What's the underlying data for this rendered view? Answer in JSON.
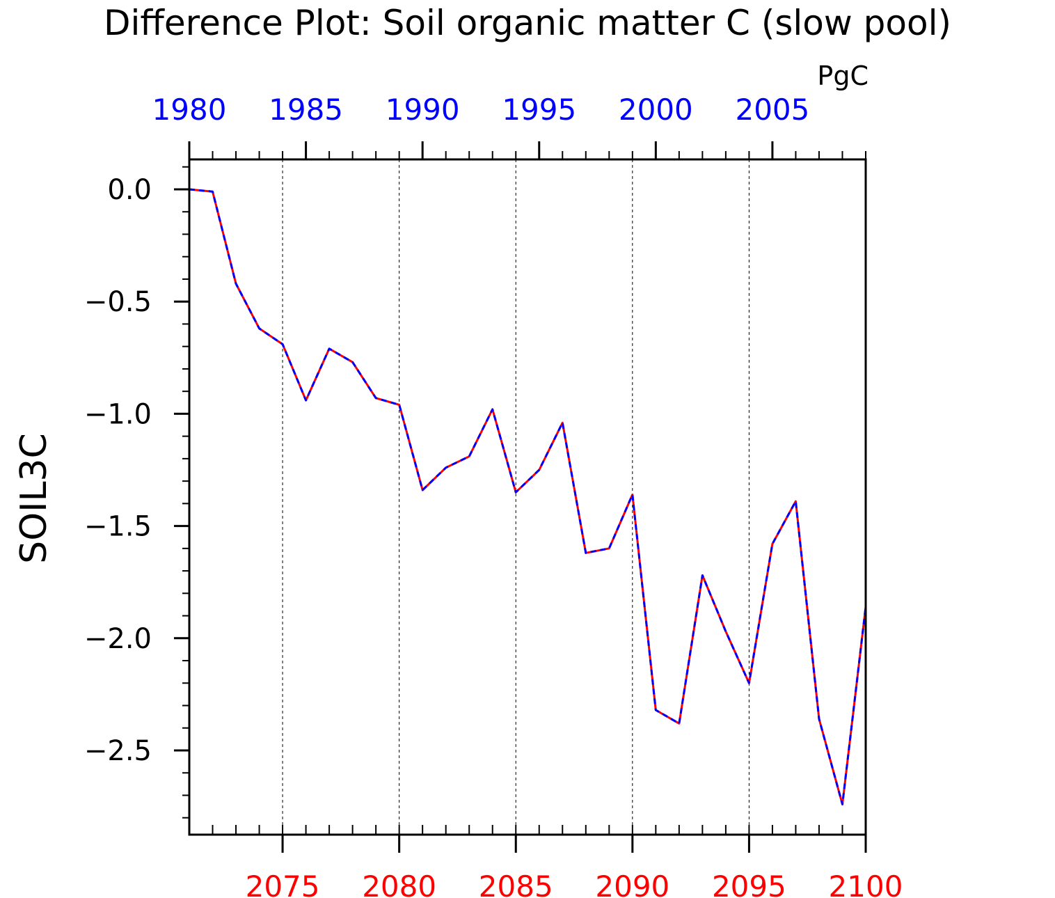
{
  "chart_data": {
    "type": "line",
    "title": "Difference Plot: Soil organic matter C (slow pool)",
    "units": "PgC",
    "ylabel": "SOIL3C",
    "ylim": [
      -3.0,
      0.13
    ],
    "yticks": [
      0.0,
      -0.5,
      -1.0,
      -1.5,
      -2.0,
      -2.5
    ],
    "ytick_labels": [
      "0.0",
      "−0.5",
      "−1.0",
      "−1.5",
      "−2.0",
      "−2.5"
    ],
    "top_axis": {
      "color": "#0000ff",
      "range": [
        1980,
        2009
      ],
      "ticks": [
        1980,
        1985,
        1990,
        1995,
        2000,
        2005
      ],
      "labels": [
        "1980",
        "1985",
        "1990",
        "1995",
        "2000",
        "2005"
      ]
    },
    "bottom_axis": {
      "color": "#ff0000",
      "range": [
        2071,
        2100
      ],
      "ticks": [
        2075,
        2080,
        2085,
        2090,
        2095,
        2100
      ],
      "labels": [
        "2075",
        "2080",
        "2085",
        "2090",
        "2095",
        "2100"
      ]
    },
    "grid": "vertical dashed at bottom-axis major ticks",
    "x": [
      2071,
      2072,
      2073,
      2074,
      2075,
      2076,
      2077,
      2078,
      2079,
      2080,
      2081,
      2082,
      2083,
      2084,
      2085,
      2086,
      2087,
      2088,
      2089,
      2090,
      2091,
      2092,
      2093,
      2094,
      2095,
      2096,
      2097,
      2098,
      2099,
      2100
    ],
    "series": [
      {
        "color": "#ff0000",
        "style": "solid",
        "values": [
          0.0,
          -0.01,
          -0.42,
          -0.62,
          -0.69,
          -0.94,
          -0.71,
          -0.77,
          -0.93,
          -0.96,
          -1.34,
          -1.24,
          -1.19,
          -0.98,
          -1.35,
          -1.25,
          -1.04,
          -1.62,
          -1.6,
          -1.36,
          -2.32,
          -2.38,
          -1.72,
          -1.97,
          -2.2,
          -1.58,
          -1.39,
          -2.36,
          -2.74,
          -1.86
        ]
      },
      {
        "color": "#0000ff",
        "style": "dashed",
        "values": [
          0.0,
          -0.01,
          -0.42,
          -0.62,
          -0.69,
          -0.94,
          -0.71,
          -0.77,
          -0.93,
          -0.96,
          -1.34,
          -1.24,
          -1.19,
          -0.98,
          -1.35,
          -1.25,
          -1.04,
          -1.62,
          -1.6,
          -1.36,
          -2.32,
          -2.38,
          -1.72,
          -1.97,
          -2.2,
          -1.58,
          -1.39,
          -2.36,
          -2.74,
          -1.86
        ]
      }
    ]
  }
}
